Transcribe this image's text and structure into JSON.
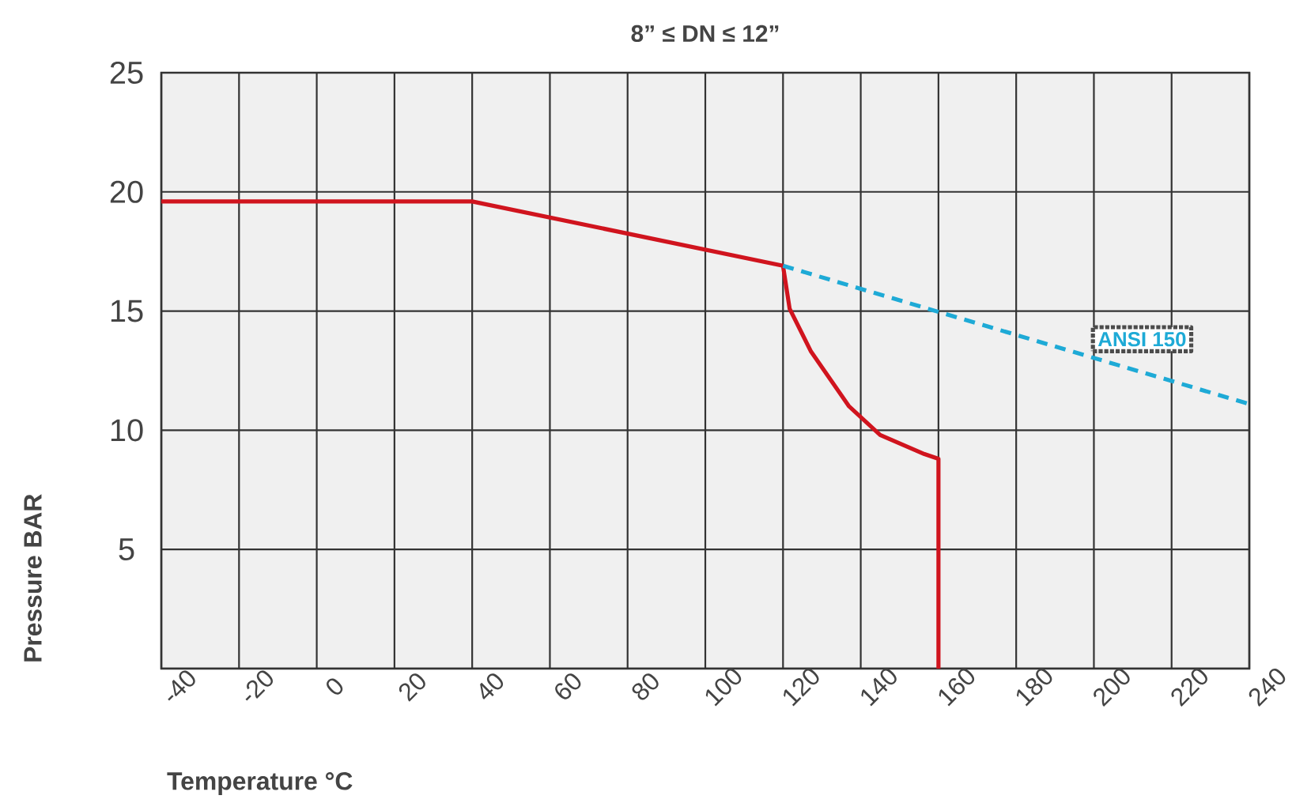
{
  "chart_data": {
    "type": "line",
    "title": "8” ≤ DN ≤ 12”",
    "xlabel": "Temperature °C",
    "ylabel": "Pressure BAR",
    "xlim": [
      -40,
      240
    ],
    "ylim": [
      0,
      25
    ],
    "xticks": [
      -40,
      -20,
      0,
      20,
      40,
      60,
      80,
      100,
      120,
      140,
      160,
      180,
      200,
      220,
      240
    ],
    "yticks": [
      {
        "value": 0,
        "label": null
      },
      5,
      10,
      15,
      20,
      25
    ],
    "grid": true,
    "marker": "none",
    "series": [
      {
        "color": "#d0141e",
        "line_style": "solid",
        "x": [
          -40,
          40,
          120,
          121.7,
          127.2,
          137,
          145,
          156.4,
          160,
          160
        ],
        "values": [
          19.6,
          19.6,
          16.9,
          15.1,
          13.3,
          11.0,
          9.8,
          9.0,
          8.8,
          0
        ]
      },
      {
        "name": "ANSI 150",
        "color": "#1eaad6",
        "line_style": "dashed",
        "x": [
          120,
          240
        ],
        "values": [
          16.9,
          11.1
        ]
      }
    ]
  }
}
